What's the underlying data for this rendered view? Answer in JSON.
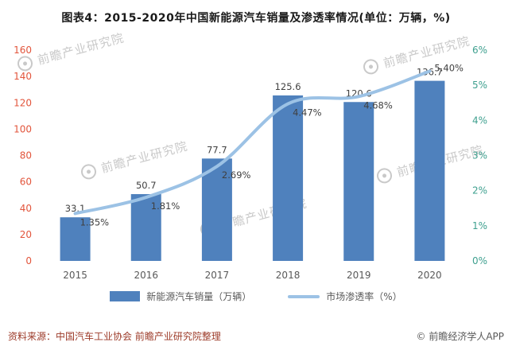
{
  "title": "图表4：2015-2020年中国新能源汽车销量及渗透率情况(单位：万辆，%)",
  "chart_data": {
    "type": "bar+line",
    "categories": [
      "2015",
      "2016",
      "2017",
      "2018",
      "2019",
      "2020"
    ],
    "series": [
      {
        "name": "新能源汽车销量（万辆）",
        "type": "bar",
        "axis": "left",
        "values": [
          33.1,
          50.7,
          77.7,
          125.6,
          120.6,
          136.7
        ],
        "labels": [
          "33.1",
          "50.7",
          "77.7",
          "125.6",
          "120.6",
          "136.7"
        ],
        "color": "#4f81bd"
      },
      {
        "name": "市场渗透率（%）",
        "type": "line",
        "axis": "right",
        "values": [
          1.35,
          1.81,
          2.69,
          4.47,
          4.68,
          5.4
        ],
        "labels": [
          "1.35%",
          "1.81%",
          "2.69%",
          "4.47%",
          "4.68%",
          "5.40%"
        ],
        "color": "#9cc2e5"
      }
    ],
    "left_axis": {
      "min": 0,
      "max": 160,
      "ticks": [
        "0",
        "20",
        "40",
        "60",
        "80",
        "100",
        "120",
        "140",
        "160"
      ],
      "color": "#e2553c"
    },
    "right_axis": {
      "min": 0,
      "max": 6,
      "ticks": [
        "0%",
        "1%",
        "2%",
        "3%",
        "4%",
        "5%",
        "6%"
      ],
      "color": "#3fa08f"
    },
    "grid": false,
    "legend_position": "bottom",
    "label_color": "#404040",
    "xlabel_color": "#595959"
  },
  "footer": {
    "source": "资料来源：中国汽车工业协会 前瞻产业研究院整理",
    "copyright": "© 前瞻经济学人APP"
  },
  "watermark": {
    "text": "前瞻产业研究院",
    "logo": "eye-icon"
  }
}
